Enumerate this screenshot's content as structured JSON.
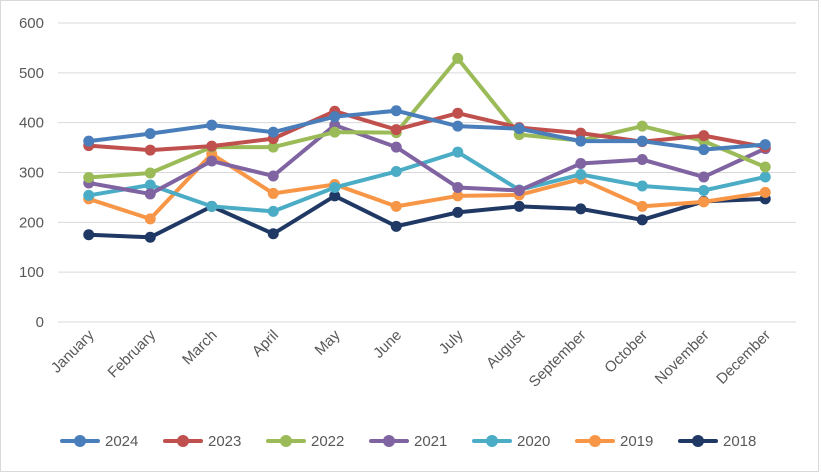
{
  "chart_data": {
    "type": "line",
    "title": "",
    "xlabel": "",
    "ylabel": "",
    "categories": [
      "January",
      "February",
      "March",
      "April",
      "May",
      "June",
      "July",
      "August",
      "September",
      "October",
      "November",
      "December"
    ],
    "ylim": [
      0,
      600
    ],
    "yticks": [
      0,
      100,
      200,
      300,
      400,
      500,
      600
    ],
    "grid": true,
    "legend_position": "bottom",
    "series": [
      {
        "name": "2024",
        "color": "#4a7ebb",
        "values": [
          363,
          378,
          395,
          381,
          412,
          424,
          393,
          388,
          363,
          363,
          346,
          356
        ]
      },
      {
        "name": "2023",
        "color": "#c0504d",
        "values": [
          354,
          345,
          353,
          368,
          423,
          386,
          419,
          390,
          379,
          362,
          374,
          351
        ]
      },
      {
        "name": "2022",
        "color": "#9bbb59",
        "values": [
          290,
          299,
          351,
          351,
          381,
          380,
          529,
          376,
          364,
          393,
          363,
          311
        ]
      },
      {
        "name": "2021",
        "color": "#8064a2",
        "values": [
          279,
          257,
          323,
          293,
          395,
          351,
          270,
          264,
          318,
          326,
          291,
          348
        ]
      },
      {
        "name": "2020",
        "color": "#4bacc6",
        "values": [
          254,
          275,
          232,
          222,
          270,
          302,
          341,
          265,
          296,
          273,
          264,
          291
        ]
      },
      {
        "name": "2019",
        "color": "#f79646",
        "values": [
          247,
          207,
          337,
          258,
          276,
          232,
          253,
          255,
          287,
          232,
          241,
          260
        ]
      },
      {
        "name": "2018",
        "color": "#1f3864",
        "values": [
          175,
          170,
          232,
          177,
          253,
          192,
          220,
          232,
          227,
          205,
          242,
          247
        ]
      }
    ]
  }
}
